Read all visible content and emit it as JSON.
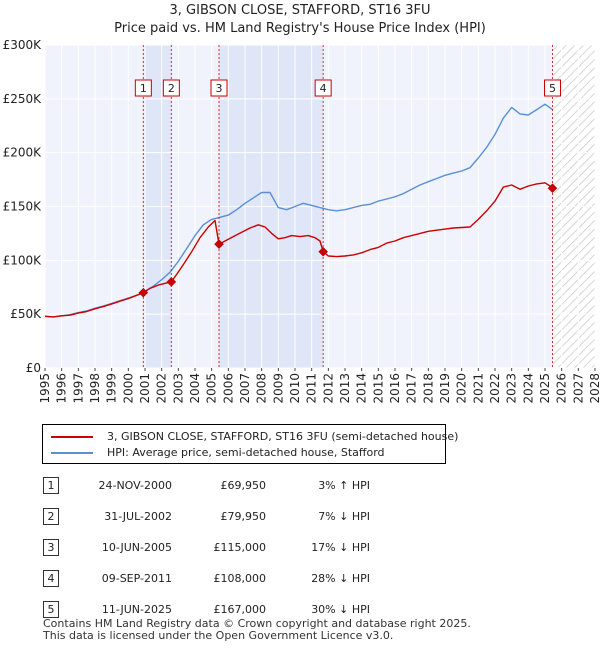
{
  "chart_data": {
    "type": "line",
    "title": "3, GIBSON CLOSE, STAFFORD, ST16 3FU",
    "subtitle": "Price paid vs. HM Land Registry's House Price Index (HPI)",
    "xlim": [
      1995,
      2028
    ],
    "ylim": [
      0,
      300000
    ],
    "y_ticks": [
      0,
      50000,
      100000,
      150000,
      200000,
      250000,
      300000
    ],
    "y_tick_labels": [
      "£0",
      "£50K",
      "£100K",
      "£150K",
      "£200K",
      "£250K",
      "£300K"
    ],
    "x_ticks": [
      1995,
      1996,
      1997,
      1998,
      1999,
      2000,
      2001,
      2002,
      2003,
      2004,
      2005,
      2006,
      2007,
      2008,
      2009,
      2010,
      2011,
      2012,
      2013,
      2014,
      2015,
      2016,
      2017,
      2018,
      2019,
      2020,
      2021,
      2022,
      2023,
      2024,
      2025,
      2026,
      2027,
      2028
    ],
    "x_tick_labels": [
      "1995",
      "1996",
      "1997",
      "1998",
      "1999",
      "2000",
      "2001",
      "2002",
      "2003",
      "2004",
      "2005",
      "2006",
      "2007",
      "2008",
      "2009",
      "2010",
      "2011",
      "2012",
      "2013",
      "2014",
      "2015",
      "2016",
      "2017",
      "2018",
      "2019",
      "2020",
      "2021",
      "2022",
      "2023",
      "2024",
      "2025",
      "2026",
      "2027",
      "2028"
    ],
    "forecast_start": 2025.45,
    "shaded_spans": [
      [
        2000.9,
        2002.58
      ],
      [
        2005.44,
        2011.69
      ]
    ],
    "series": [
      {
        "name": "3, GIBSON CLOSE, STAFFORD, ST16 3FU (semi-detached house)",
        "color": "#cc0000",
        "x": [
          1995.0,
          1995.5,
          1996.0,
          1996.5,
          1997.0,
          1997.5,
          1998.0,
          1998.5,
          1999.0,
          1999.5,
          2000.0,
          2000.5,
          2000.9,
          2001.3,
          2001.8,
          2002.3,
          2002.58,
          2002.9,
          2003.3,
          2003.8,
          2004.3,
          2004.8,
          2005.2,
          2005.44,
          2005.8,
          2006.3,
          2006.8,
          2007.3,
          2007.8,
          2008.2,
          2008.6,
          2009.0,
          2009.4,
          2009.8,
          2010.3,
          2010.8,
          2011.2,
          2011.5,
          2011.69,
          2012.0,
          2012.5,
          2013.0,
          2013.5,
          2014.0,
          2014.5,
          2015.0,
          2015.5,
          2016.0,
          2016.5,
          2017.0,
          2017.5,
          2018.0,
          2018.5,
          2019.0,
          2019.5,
          2020.0,
          2020.5,
          2021.0,
          2021.5,
          2022.0,
          2022.5,
          2023.0,
          2023.5,
          2024.0,
          2024.5,
          2025.0,
          2025.3,
          2025.45
        ],
        "values": [
          48000,
          47500,
          48500,
          49000,
          51000,
          52500,
          55000,
          57000,
          59500,
          62000,
          64500,
          67500,
          69950,
          74000,
          77000,
          79000,
          79950,
          87000,
          96000,
          108000,
          121000,
          131000,
          137000,
          115000,
          118000,
          122000,
          126000,
          130000,
          133000,
          131000,
          125000,
          120000,
          121000,
          123000,
          122000,
          123000,
          121000,
          118000,
          108000,
          104000,
          103500,
          104000,
          105000,
          107000,
          110000,
          112000,
          116000,
          118000,
          121000,
          123000,
          125000,
          127000,
          128000,
          129000,
          130000,
          130500,
          131000,
          138000,
          146000,
          155000,
          168000,
          170000,
          166000,
          169000,
          171000,
          172000,
          169000,
          167000
        ]
      },
      {
        "name": "HPI: Average price, semi-detached house, Stafford",
        "color": "#5b8fd4",
        "x": [
          1995.0,
          1995.5,
          1996.0,
          1996.5,
          1997.0,
          1997.5,
          1998.0,
          1998.5,
          1999.0,
          1999.5,
          2000.0,
          2000.5,
          2001.0,
          2001.5,
          2002.0,
          2002.5,
          2003.0,
          2003.5,
          2004.0,
          2004.5,
          2005.0,
          2005.5,
          2006.0,
          2006.5,
          2007.0,
          2007.5,
          2008.0,
          2008.5,
          2009.0,
          2009.5,
          2010.0,
          2010.5,
          2011.0,
          2011.5,
          2012.0,
          2012.5,
          2013.0,
          2013.5,
          2014.0,
          2014.5,
          2015.0,
          2015.5,
          2016.0,
          2016.5,
          2017.0,
          2017.5,
          2018.0,
          2018.5,
          2019.0,
          2019.5,
          2020.0,
          2020.5,
          2021.0,
          2021.5,
          2022.0,
          2022.5,
          2023.0,
          2023.5,
          2024.0,
          2024.5,
          2025.0,
          2025.45
        ],
        "values": [
          48000,
          47500,
          48500,
          49500,
          51500,
          53000,
          55500,
          57500,
          60000,
          62500,
          65000,
          67500,
          71000,
          76000,
          82000,
          89000,
          99000,
          111000,
          123000,
          133000,
          138000,
          140000,
          142000,
          147000,
          153000,
          158000,
          163000,
          163000,
          149000,
          147000,
          150000,
          153000,
          151000,
          149000,
          147000,
          146000,
          147000,
          149000,
          151000,
          152000,
          155000,
          157000,
          159000,
          162000,
          166000,
          170000,
          173000,
          176000,
          179000,
          181000,
          183000,
          186000,
          195000,
          205000,
          217000,
          232000,
          242000,
          236000,
          235000,
          240000,
          245000,
          240000
        ]
      }
    ],
    "sales": [
      {
        "num": "1",
        "x": 2000.9,
        "value": 69950
      },
      {
        "num": "2",
        "x": 2002.58,
        "value": 79950
      },
      {
        "num": "3",
        "x": 2005.44,
        "value": 115000
      },
      {
        "num": "4",
        "x": 2011.69,
        "value": 108000
      },
      {
        "num": "5",
        "x": 2025.45,
        "value": 167000
      }
    ]
  },
  "legend": {
    "property_label": "3, GIBSON CLOSE, STAFFORD, ST16 3FU (semi-detached house)",
    "hpi_label": "HPI: Average price, semi-detached house, Stafford"
  },
  "sales_table": [
    {
      "num": "1",
      "date": "24-NOV-2000",
      "price": "£69,950",
      "hpi": "3% ↑ HPI"
    },
    {
      "num": "2",
      "date": "31-JUL-2002",
      "price": "£79,950",
      "hpi": "7% ↓ HPI"
    },
    {
      "num": "3",
      "date": "10-JUN-2005",
      "price": "£115,000",
      "hpi": "17% ↓ HPI"
    },
    {
      "num": "4",
      "date": "09-SEP-2011",
      "price": "£108,000",
      "hpi": "28% ↓ HPI"
    },
    {
      "num": "5",
      "date": "11-JUN-2025",
      "price": "£167,000",
      "hpi": "30% ↓ HPI"
    }
  ],
  "footer": {
    "line1": "Contains HM Land Registry data © Crown copyright and database right 2025.",
    "line2": "This data is licensed under the Open Government Licence v3.0."
  }
}
